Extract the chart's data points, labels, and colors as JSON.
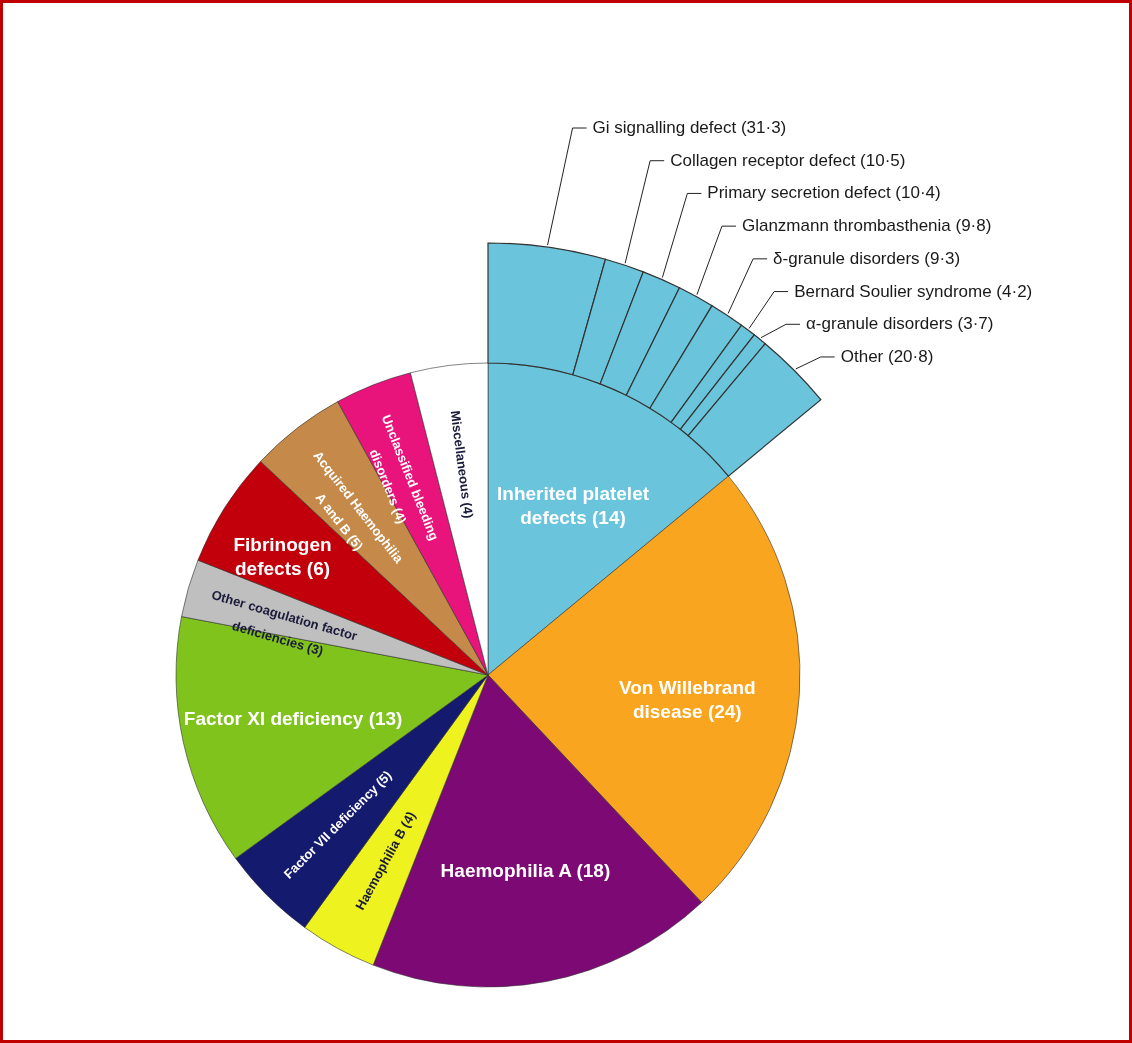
{
  "chart_data": [
    {
      "type": "pie",
      "categories": [
        "Inherited platelet defects",
        "Von Willebrand disease",
        "Haemophilia A",
        "Haemophilia B",
        "Factor VII deficiency",
        "Factor XI deficiency",
        "Other coagulation factor deficiencies",
        "Fibrinogen defects",
        "Acquired Haemophilia A and B",
        "Unclassified bleeding disorders",
        "Miscellaneous"
      ],
      "values": [
        14,
        24,
        18,
        4,
        5,
        13,
        3,
        6,
        5,
        4,
        4
      ],
      "colors": [
        "#6ac4dc",
        "#f9a51f",
        "#7d0a74",
        "#eef21f",
        "#141a6e",
        "#80c31c",
        "#c0bfbf",
        "#c1000c",
        "#c58a4a",
        "#e8147b",
        "#ffffff"
      ],
      "value_labels": [
        "(14)",
        "(24)",
        "(18)",
        "(4)",
        "(5)",
        "(13)",
        "(3)",
        "(6)",
        "(5)",
        "(4)",
        "(4)"
      ]
    },
    {
      "type": "donut",
      "categories": [
        "Gi signalling defect",
        "Collagen receptor defect",
        "Primary secretion defect",
        "Glanzmann thrombasthenia",
        "δ-granule disorders",
        "Bernard Soulier syndrome",
        "α-granule disorders",
        "Other"
      ],
      "values": [
        31.3,
        10.5,
        10.4,
        9.8,
        9.3,
        4.2,
        3.7,
        20.8
      ],
      "value_labels": [
        "(31·3)",
        "(10·5)",
        "(10·4)",
        "(9·8)",
        "(9·3)",
        "(4·2)",
        "(3·7)",
        "(20·8)"
      ],
      "colors": [
        "#6ac4dc",
        "#6ac4dc",
        "#6ac4dc",
        "#6ac4dc",
        "#6ac4dc",
        "#6ac4dc",
        "#6ac4dc",
        "#6ac4dc"
      ]
    }
  ]
}
